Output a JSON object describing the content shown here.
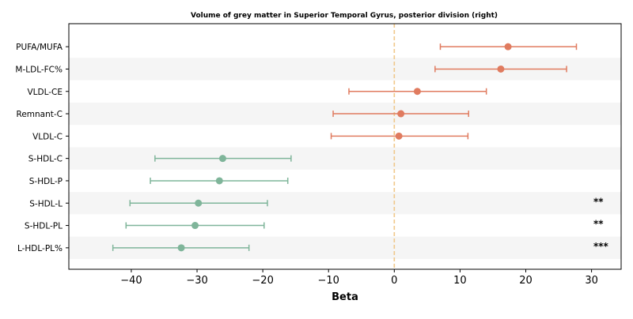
{
  "chart_data": {
    "type": "forest",
    "title": "Volume of grey matter in Superior Temporal Gyrus, posterior division (right)",
    "xlabel": "Beta",
    "ylabel": "",
    "xlim": [
      -49.5,
      34.5
    ],
    "xticks": [
      -40,
      -30,
      -20,
      -10,
      0,
      10,
      20,
      30
    ],
    "reference_line": 0,
    "grid": false,
    "colors": {
      "positive": "#e07b5f",
      "negative": "#7fb59a",
      "reference": "#f0c88a",
      "band": "#f5f5f5"
    },
    "rows": [
      {
        "label": "PUFA/MUFA",
        "beta": 17.3,
        "lower": 7.0,
        "upper": 27.7,
        "sig": ""
      },
      {
        "label": "M-LDL-FC%",
        "beta": 16.2,
        "lower": 6.2,
        "upper": 26.2,
        "sig": ""
      },
      {
        "label": "VLDL-CE",
        "beta": 3.5,
        "lower": -6.9,
        "upper": 14.0,
        "sig": ""
      },
      {
        "label": "Remnant-C",
        "beta": 1.0,
        "lower": -9.3,
        "upper": 11.3,
        "sig": ""
      },
      {
        "label": "VLDL-C",
        "beta": 0.7,
        "lower": -9.6,
        "upper": 11.2,
        "sig": ""
      },
      {
        "label": "S-HDL-C",
        "beta": -26.1,
        "lower": -36.4,
        "upper": -15.7,
        "sig": ""
      },
      {
        "label": "S-HDL-P",
        "beta": -26.6,
        "lower": -37.1,
        "upper": -16.2,
        "sig": ""
      },
      {
        "label": "S-HDL-L",
        "beta": -29.8,
        "lower": -40.2,
        "upper": -19.3,
        "sig": "**"
      },
      {
        "label": "S-HDL-PL",
        "beta": -30.3,
        "lower": -40.8,
        "upper": -19.8,
        "sig": "**"
      },
      {
        "label": "L-HDL-PL%",
        "beta": -32.4,
        "lower": -42.8,
        "upper": -22.1,
        "sig": "***"
      }
    ]
  }
}
